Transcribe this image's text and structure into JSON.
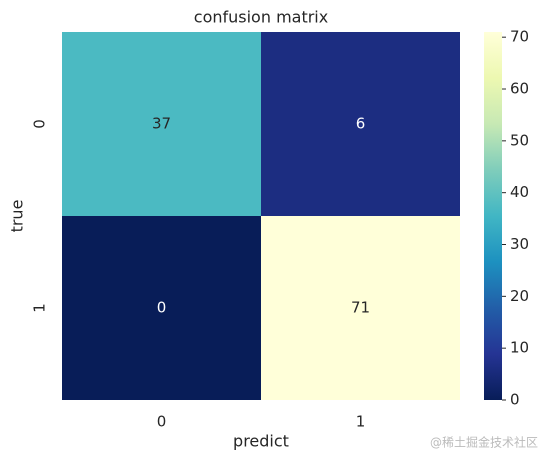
{
  "chart_data": {
    "type": "heatmap",
    "title": "confusion matrix",
    "xlabel": "predict",
    "ylabel": "true",
    "x_categories": [
      "0",
      "1"
    ],
    "y_categories": [
      "0",
      "1"
    ],
    "values": [
      [
        37,
        6
      ],
      [
        0,
        71
      ]
    ],
    "colormap": [
      "#081d58",
      "#253494",
      "#225ea8",
      "#1d91c0",
      "#41b6c4",
      "#7fcdbb",
      "#c7e9b4",
      "#edf8b1",
      "#ffffd9"
    ],
    "clim": [
      0,
      71
    ],
    "cticks": [
      0,
      10,
      20,
      30,
      40,
      50,
      60,
      70
    ]
  },
  "watermark": "@稀土掘金技术社区"
}
